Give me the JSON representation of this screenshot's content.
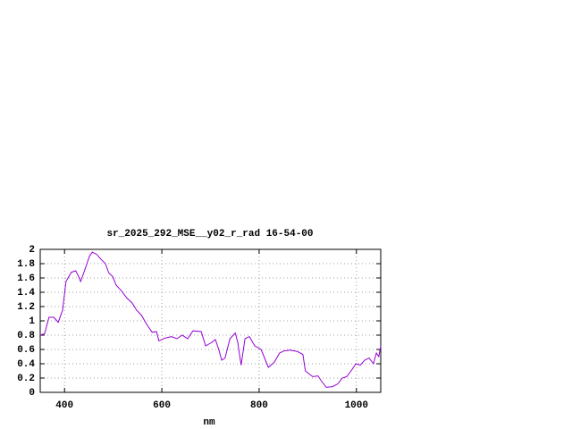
{
  "chart_data": {
    "type": "line",
    "title": "sr_2025_292_MSE__y02_r_rad 16-54-00",
    "x_label": "nm",
    "x": [
      350,
      359,
      368,
      378,
      387,
      396,
      403,
      414,
      423,
      429,
      433,
      442,
      451,
      457,
      466,
      475,
      484,
      491,
      499,
      506,
      517,
      528,
      539,
      548,
      558,
      569,
      580,
      589,
      594,
      607,
      620,
      631,
      642,
      653,
      664,
      681,
      690,
      703,
      710,
      717,
      723,
      730,
      740,
      751,
      756,
      763,
      771,
      780,
      791,
      804,
      819,
      831,
      842,
      851,
      864,
      879,
      890,
      895,
      910,
      921,
      929,
      938,
      951,
      962,
      971,
      980,
      989,
      999,
      1008,
      1017,
      1026,
      1035,
      1041,
      1046,
      1050
    ],
    "series": [
      {
        "color": "#9400d3",
        "values": [
          0.8,
          0.82,
          1.05,
          1.05,
          0.98,
          1.15,
          1.55,
          1.68,
          1.7,
          1.62,
          1.55,
          1.72,
          1.9,
          1.96,
          1.93,
          1.86,
          1.8,
          1.67,
          1.62,
          1.5,
          1.42,
          1.32,
          1.25,
          1.15,
          1.08,
          0.95,
          0.84,
          0.85,
          0.72,
          0.76,
          0.78,
          0.75,
          0.8,
          0.75,
          0.86,
          0.85,
          0.65,
          0.7,
          0.74,
          0.6,
          0.45,
          0.48,
          0.75,
          0.83,
          0.7,
          0.38,
          0.75,
          0.78,
          0.65,
          0.6,
          0.35,
          0.42,
          0.55,
          0.58,
          0.59,
          0.57,
          0.53,
          0.3,
          0.22,
          0.23,
          0.15,
          0.07,
          0.08,
          0.12,
          0.2,
          0.22,
          0.3,
          0.4,
          0.38,
          0.45,
          0.48,
          0.4,
          0.55,
          0.5,
          0.65
        ]
      }
    ],
    "xlim": [
      350,
      1050
    ],
    "xticks": [
      400,
      600,
      800,
      1000
    ],
    "ylim": [
      0,
      2
    ],
    "yticks": [
      0,
      0.2,
      0.4,
      0.6,
      0.8,
      1,
      1.2,
      1.4,
      1.6,
      1.8,
      2
    ],
    "grid": true
  }
}
